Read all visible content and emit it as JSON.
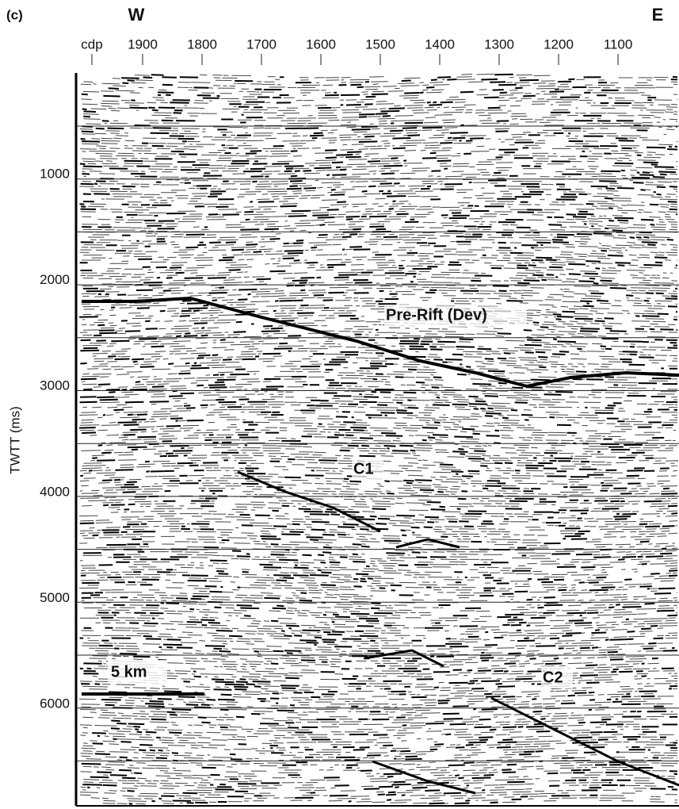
{
  "panel_label": "(c)",
  "west_label": "W",
  "east_label": "E",
  "x_axis": {
    "label": "cdp",
    "ticks": [
      1900,
      1800,
      1700,
      1600,
      1500,
      1400,
      1300,
      1200,
      1100
    ]
  },
  "y_axis": {
    "label": "TWTT (ms)",
    "ticks": [
      1000,
      2000,
      3000,
      4000,
      5000,
      6000
    ]
  },
  "annotations": [
    "Pre-Rift (Dev)",
    "C1",
    "C2"
  ],
  "scale_bar": "5 km"
}
